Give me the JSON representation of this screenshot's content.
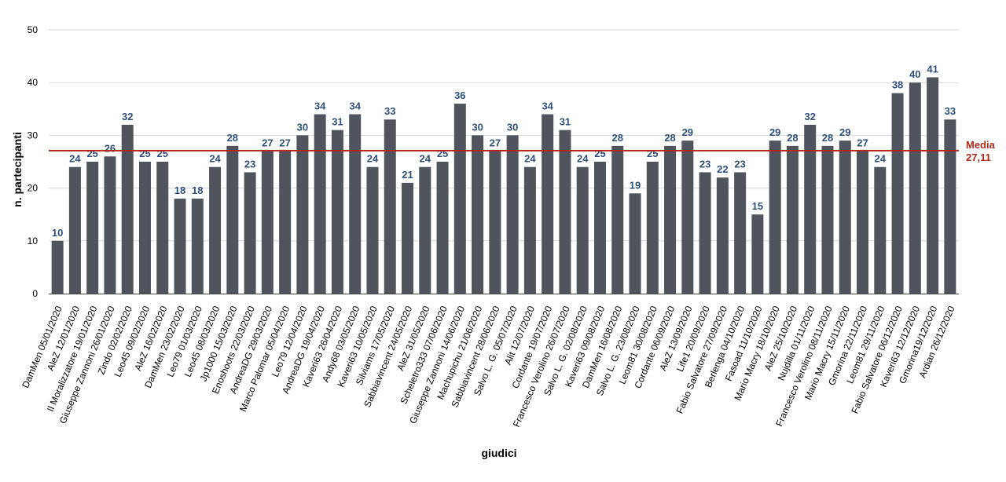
{
  "chart_data": {
    "type": "bar",
    "xlabel": "giudici",
    "ylabel": "n. partecipanti",
    "ylim": [
      0,
      50
    ],
    "yticks": [
      0,
      10,
      20,
      30,
      40,
      50
    ],
    "grid": "horizontal",
    "colors": {
      "bar": "#50545c",
      "data_label": "#2f4f7c",
      "mean_line": "#b02a1e",
      "grid": "#d9d9d9"
    },
    "categories": [
      "DamMen 05/01/2020",
      "AleZ 12/01/2020",
      "Il Moralizzatore 19/01/2020",
      "Giuseppe Zannoni 26/01/2020",
      "Zindo 02/02/2020",
      "Leo45 09/02/2020",
      "AleZ 16/02/2020",
      "DamMen 23/02/2020",
      "Leo79 01/03/2020",
      "Leo45 08/03/2020",
      "Jp1000 15/03/2020",
      "Enoshoots 22/03/2020",
      "AndreaDG 29/03/2020",
      "Marco Palomar 05/04/2020",
      "Leo79 12/04/2020",
      "AndreaDG 19/04/2020",
      "Kaveri63 26/04/2020",
      "Andy68 03/05/2020",
      "Kaveri63 10/05/2020",
      "Silviams 17/05/2020",
      "Sabbiavincent 24/05/2020",
      "AleZ 31/05/2020",
      "Scheletro333 07/06/2020",
      "Giuseppe Zannoni 14/06/2020",
      "Machupichu 21/06/2020",
      "Sabbiavincent 28/06/2020",
      "Salvo L. G. 05/07/2020",
      "Alit 12/07/2020",
      "Cordante 19/07/2020",
      "Francesco Verolino 26/07/2020",
      "Salvo L. G. 02/08/2020",
      "Kaveri63 09/08/2020",
      "DamMen 16/08/2020",
      "Salvo L. G. 23/08/2020",
      "Leom81 30/08/2020",
      "Cordante 06/09/2020",
      "AleZ 13/09/2020",
      "Life1 20/09/2020",
      "Fabio Salvatore 27/09/2020",
      "Berlenga 04/10/2020",
      "Fasoad 11/10/2020",
      "Mario Macry 18/10/2020",
      "AleZ 25/10/2020",
      "Nujdilla 01/11/2020",
      "Francesco Verolino 08/11/2020",
      "Mario Macry 15/11/2020",
      "Gmorina 22/11/2020",
      "Leom81 29/11/2020",
      "Fabio Salvatore 06/12/2020",
      "Kaveri63 12/12/2020",
      "Gmorina19/12/2020",
      "Ardian 26/12/2020"
    ],
    "values": [
      10,
      24,
      25,
      26,
      32,
      25,
      25,
      18,
      18,
      24,
      28,
      23,
      27,
      27,
      30,
      34,
      31,
      34,
      24,
      33,
      21,
      24,
      25,
      36,
      30,
      27,
      30,
      24,
      34,
      31,
      24,
      25,
      28,
      19,
      25,
      28,
      29,
      23,
      22,
      23,
      15,
      29,
      28,
      32,
      28,
      29,
      27,
      24,
      38,
      40,
      41,
      33
    ],
    "mean": {
      "value": 27.11,
      "label_title": "Media",
      "label_value": "27,11"
    }
  }
}
